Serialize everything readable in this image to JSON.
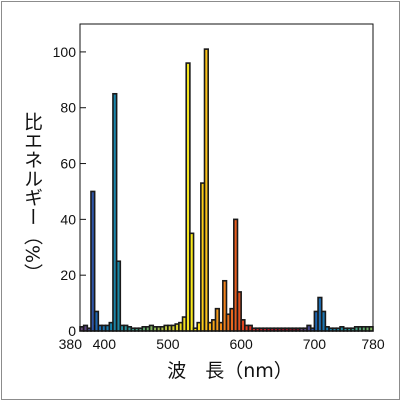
{
  "chart_data": {
    "type": "bar",
    "title": "",
    "xlabel": "波　長（nm）",
    "ylabel": "比エネルギー（%）",
    "xlim": [
      380,
      780
    ],
    "ylim": [
      0,
      110
    ],
    "x_ticks": [
      380,
      400,
      500,
      600,
      700,
      780
    ],
    "x_tick_labels": [
      "380",
      "400",
      "500",
      "600",
      "700",
      "780"
    ],
    "y_ticks": [
      0,
      20,
      40,
      60,
      80,
      100
    ],
    "y_tick_labels": [
      "0",
      "20",
      "40",
      "60",
      "80",
      "100"
    ],
    "grid": false,
    "bin_width_nm": 5,
    "bins_start_nm": [
      380,
      385,
      390,
      395,
      400,
      405,
      410,
      415,
      420,
      425,
      430,
      435,
      440,
      445,
      450,
      455,
      460,
      465,
      470,
      475,
      480,
      485,
      490,
      495,
      500,
      505,
      510,
      515,
      520,
      525,
      530,
      535,
      540,
      545,
      550,
      555,
      560,
      565,
      570,
      575,
      580,
      585,
      590,
      595,
      600,
      605,
      610,
      615,
      620,
      625,
      630,
      635,
      640,
      645,
      650,
      655,
      660,
      665,
      670,
      675,
      680,
      685,
      690,
      695,
      700,
      705,
      710,
      715,
      720,
      725,
      730,
      735,
      740,
      745,
      750,
      755,
      760,
      765,
      770,
      775
    ],
    "values": [
      1.5,
      2,
      1,
      50,
      7,
      2,
      2,
      2,
      3,
      85,
      25,
      2,
      2,
      1.5,
      1,
      1,
      1,
      1.5,
      1.5,
      2,
      1.5,
      1.5,
      1.5,
      2,
      2,
      2,
      2.5,
      3,
      5,
      96,
      35,
      1,
      3,
      53,
      101,
      3,
      4,
      8,
      3,
      18,
      6,
      8,
      40,
      14,
      4,
      2,
      2,
      1,
      1,
      1,
      1,
      1,
      1,
      1,
      1,
      1,
      1,
      1,
      1,
      1,
      1,
      1,
      2,
      1,
      7,
      12,
      7,
      1.5,
      1,
      1,
      1,
      1.5,
      1,
      1,
      1,
      1.5,
      1.5,
      1.5,
      1.5,
      1.5
    ],
    "colors": [
      "#6a4b7a",
      "#5a4480",
      "#46468e",
      "#2f55a7",
      "#1e66b3",
      "#1e6fb5",
      "#1c76b2",
      "#1a7cae",
      "#1882aa",
      "#1a84a8",
      "#1d88a4",
      "#228da0",
      "#28919b",
      "#2f9694",
      "#3a9b8c",
      "#45a083",
      "#52a57a",
      "#60aa71",
      "#6fae68",
      "#7fb35f",
      "#8eb856",
      "#9dbc4d",
      "#acc145",
      "#bac53d",
      "#c7ca36",
      "#d3cf30",
      "#dfd42b",
      "#eadb27",
      "#f2e022",
      "#f7e61f",
      "#fbea1c",
      "#fde41b",
      "#fdda1a",
      "#fcce1a",
      "#fac11a",
      "#f8b41a",
      "#f6a71a",
      "#f49a1b",
      "#f28e1b",
      "#f0821c",
      "#ed751d",
      "#ea691e",
      "#e65d1f",
      "#e35221",
      "#df4722",
      "#db3d23",
      "#d63324",
      "#d12b25",
      "#cb2425",
      "#c51e25",
      "#bf1a25",
      "#b81725",
      "#b11525",
      "#a91424",
      "#a21324",
      "#9a1224",
      "#931123",
      "#8b1123",
      "#841022",
      "#7d1022"
    ]
  }
}
